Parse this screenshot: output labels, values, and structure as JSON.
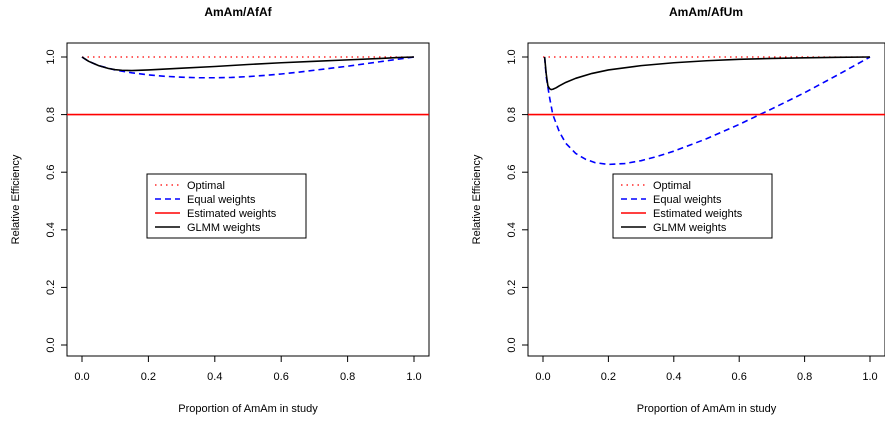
{
  "chart_data": [
    {
      "type": "line",
      "title": "AmAm/AfAf",
      "xlabel": "Proportion of AmAm in study",
      "ylabel": "Relative Efficiency",
      "xlim": [
        0,
        1
      ],
      "ylim": [
        0,
        1
      ],
      "x_ticks": [
        "0.0",
        "0.2",
        "0.4",
        "0.6",
        "0.8",
        "1.0"
      ],
      "y_ticks": [
        "0.0",
        "0.2",
        "0.4",
        "0.6",
        "0.8",
        "1.0"
      ],
      "legend_position": "center-left",
      "series": [
        {
          "name": "Optimal",
          "color": "#ff0000",
          "style": "dotted",
          "x": [
            0,
            1
          ],
          "y": [
            1.0,
            1.0
          ]
        },
        {
          "name": "Equal weights",
          "color": "#0000ff",
          "style": "dashed",
          "x": [
            0,
            0.02,
            0.05,
            0.1,
            0.15,
            0.2,
            0.25,
            0.3,
            0.35,
            0.4,
            0.45,
            0.5,
            0.55,
            0.6,
            0.65,
            0.7,
            0.75,
            0.8,
            0.85,
            0.9,
            0.95,
            1.0
          ],
          "y": [
            1.0,
            0.985,
            0.97,
            0.955,
            0.945,
            0.938,
            0.933,
            0.93,
            0.928,
            0.928,
            0.929,
            0.932,
            0.936,
            0.941,
            0.947,
            0.954,
            0.961,
            0.968,
            0.976,
            0.984,
            0.992,
            1.0
          ]
        },
        {
          "name": "Estimated weights",
          "color": "#ff0000",
          "style": "solid",
          "x": [
            0,
            1
          ],
          "y": [
            0.8,
            0.8
          ]
        },
        {
          "name": "GLMM weights",
          "color": "#000000",
          "style": "solid",
          "x": [
            0,
            0.02,
            0.05,
            0.08,
            0.1,
            0.12,
            0.15,
            0.2,
            0.25,
            0.3,
            0.4,
            0.5,
            0.6,
            0.7,
            0.8,
            0.9,
            0.95,
            1.0
          ],
          "y": [
            1.0,
            0.985,
            0.97,
            0.96,
            0.956,
            0.954,
            0.953,
            0.955,
            0.958,
            0.961,
            0.967,
            0.974,
            0.98,
            0.985,
            0.99,
            0.995,
            0.998,
            1.0
          ]
        }
      ]
    },
    {
      "type": "line",
      "title": "AmAm/AfUm",
      "xlabel": "Proportion of AmAm in study",
      "ylabel": "Relative Efficiency",
      "xlim": [
        0,
        1
      ],
      "ylim": [
        0,
        1
      ],
      "x_ticks": [
        "0.0",
        "0.2",
        "0.4",
        "0.6",
        "0.8",
        "1.0"
      ],
      "y_ticks": [
        "0.0",
        "0.2",
        "0.4",
        "0.6",
        "0.8",
        "1.0"
      ],
      "legend_position": "center-left",
      "series": [
        {
          "name": "Optimal",
          "color": "#ff0000",
          "style": "dotted",
          "x": [
            0,
            1
          ],
          "y": [
            1.0,
            1.0
          ]
        },
        {
          "name": "Equal weights",
          "color": "#0000ff",
          "style": "dashed",
          "x": [
            0.005,
            0.01,
            0.02,
            0.03,
            0.05,
            0.07,
            0.1,
            0.13,
            0.16,
            0.2,
            0.25,
            0.3,
            0.35,
            0.4,
            0.5,
            0.6,
            0.7,
            0.8,
            0.9,
            1.0
          ],
          "y": [
            1.0,
            0.93,
            0.86,
            0.8,
            0.74,
            0.7,
            0.665,
            0.645,
            0.633,
            0.627,
            0.63,
            0.64,
            0.655,
            0.673,
            0.716,
            0.766,
            0.82,
            0.876,
            0.937,
            1.0
          ]
        },
        {
          "name": "Estimated weights",
          "color": "#ff0000",
          "style": "solid",
          "x": [
            0,
            1
          ],
          "y": [
            0.8,
            0.8
          ]
        },
        {
          "name": "GLMM weights",
          "color": "#000000",
          "style": "solid",
          "x": [
            0.005,
            0.01,
            0.015,
            0.02,
            0.025,
            0.03,
            0.04,
            0.05,
            0.07,
            0.1,
            0.15,
            0.2,
            0.3,
            0.4,
            0.5,
            0.6,
            0.7,
            0.8,
            0.9,
            1.0
          ],
          "y": [
            1.0,
            0.94,
            0.9,
            0.89,
            0.887,
            0.888,
            0.893,
            0.9,
            0.912,
            0.926,
            0.943,
            0.955,
            0.97,
            0.98,
            0.987,
            0.992,
            0.995,
            0.997,
            0.999,
            1.0
          ]
        }
      ]
    }
  ]
}
